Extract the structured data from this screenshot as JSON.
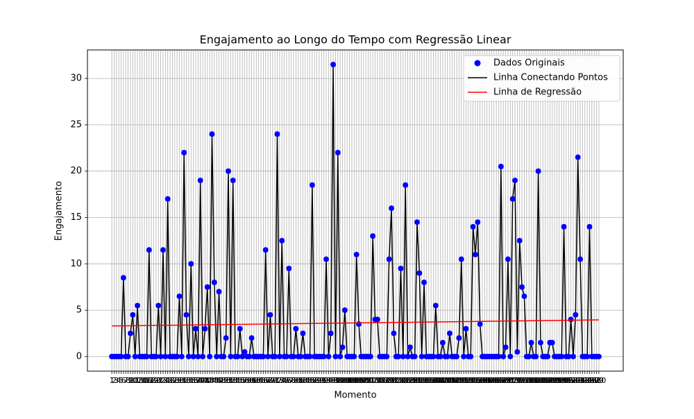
{
  "chart_data": {
    "type": "scatter",
    "title": "Engajamento ao Longo do Tempo com Regressão Linear",
    "x_label": "Momento",
    "y_label": "Engajamento",
    "x": [
      1,
      2,
      3,
      4,
      5,
      6,
      7,
      8,
      9,
      10,
      11,
      12,
      13,
      14,
      15,
      16,
      17,
      18,
      19,
      20,
      21,
      22,
      23,
      24,
      25,
      26,
      27,
      28,
      29,
      30,
      31,
      32,
      33,
      34,
      35,
      36,
      37,
      38,
      39,
      40,
      41,
      42,
      43,
      44,
      45,
      46,
      47,
      48,
      49,
      50,
      51,
      52,
      53,
      54,
      55,
      56,
      57,
      58,
      59,
      60,
      61,
      62,
      63,
      64,
      65,
      66,
      67,
      68,
      69,
      70,
      71,
      72,
      73,
      74,
      75,
      76,
      77,
      78,
      79,
      80,
      81,
      82,
      83,
      84,
      85,
      86,
      87,
      88,
      89,
      90,
      91,
      92,
      93,
      94,
      95,
      96,
      97,
      98,
      99,
      100,
      101,
      102,
      103,
      104,
      105,
      106,
      107,
      108,
      109,
      110,
      111,
      112,
      113,
      114,
      115,
      116,
      117,
      118,
      119,
      120,
      121,
      122,
      123,
      124,
      125,
      126,
      127,
      128,
      129,
      130,
      131,
      132,
      133,
      134,
      135,
      136,
      137,
      138,
      139,
      140,
      141,
      142,
      143,
      144,
      145,
      146,
      147,
      148,
      149,
      150,
      151,
      152,
      153,
      154,
      155,
      156,
      157,
      158,
      159,
      160,
      161,
      162,
      163,
      164,
      165,
      166,
      167,
      168,
      169,
      170,
      171,
      172,
      173,
      174,
      175,
      176,
      177,
      178,
      179,
      180,
      181,
      182,
      183,
      184,
      185,
      186,
      187,
      188,
      189,
      190,
      191,
      192,
      193,
      194,
      195,
      196,
      197,
      198,
      199,
      200,
      201,
      202,
      203,
      204,
      205,
      206,
      207,
      208,
      209,
      210
    ],
    "series": [
      {
        "name": "Dados Originais",
        "type": "scatter",
        "color": "#0000ff",
        "values": [
          0,
          0,
          0,
          0,
          0,
          8.5,
          0,
          0,
          2.5,
          4.5,
          0,
          5.5,
          0,
          0,
          0,
          0,
          11.5,
          0,
          0,
          0,
          5.5,
          0,
          11.5,
          0,
          17,
          0,
          0,
          0,
          0,
          6.5,
          0,
          22,
          4.5,
          0,
          10,
          0,
          3,
          0,
          19,
          0,
          3,
          7.5,
          0,
          24,
          8,
          0,
          7,
          0,
          0,
          2,
          20,
          0,
          19,
          0,
          0,
          3,
          0,
          0.5,
          0,
          0,
          2,
          0,
          0,
          0,
          0,
          0,
          11.5,
          0,
          4.5,
          0,
          0,
          24,
          0,
          12.5,
          0,
          0,
          9.5,
          0,
          0,
          3,
          0,
          0,
          2.5,
          0,
          0,
          0,
          18.5,
          0,
          0,
          0,
          0,
          0,
          10.5,
          0,
          2.5,
          31.5,
          0,
          22,
          0,
          1,
          5,
          0,
          0,
          0,
          0,
          11,
          3.5,
          0,
          0,
          0,
          0,
          0,
          13,
          4,
          4,
          0,
          0,
          0,
          0,
          10.5,
          16,
          2.5,
          0,
          0,
          9.5,
          0,
          18.5,
          0,
          1,
          0,
          0,
          14.5,
          9,
          0,
          8,
          0,
          0,
          0,
          0,
          5.5,
          0,
          0,
          1.5,
          0,
          0,
          2.5,
          0,
          0,
          0,
          2,
          10.5,
          0,
          3,
          0,
          0,
          14,
          11,
          14.5,
          3.5,
          0,
          0,
          0,
          0,
          0,
          0,
          0,
          0,
          20.5,
          0,
          1,
          10.5,
          0,
          17,
          19,
          0.5,
          12.5,
          7.5,
          6.5,
          0,
          0,
          1.5,
          0,
          0,
          20,
          1.5,
          0,
          0,
          0,
          1.5,
          1.5,
          0,
          0,
          0,
          0,
          14,
          0,
          0,
          4,
          0,
          4.5,
          21.5,
          10.5,
          0,
          0,
          0,
          14,
          0,
          0,
          0,
          0
        ]
      },
      {
        "name": "Linha Conectando Pontos",
        "type": "line",
        "color": "#000000"
      },
      {
        "name": "Linha de Regressão",
        "type": "line",
        "color": "#ff0000",
        "x": [
          1,
          210
        ],
        "values": [
          3.3,
          3.95
        ]
      }
    ],
    "xlim": [
      -9.45,
      220.45
    ],
    "ylim": [
      -1.575,
      33.075
    ],
    "yticks": [
      0,
      5,
      10,
      15,
      20,
      25,
      30
    ],
    "grid": true,
    "legend": "upper right"
  }
}
